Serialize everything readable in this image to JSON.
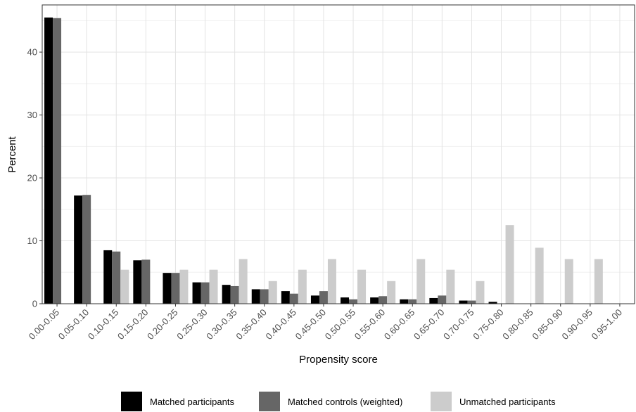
{
  "chart_data": {
    "type": "bar",
    "xlabel": "Propensity score",
    "ylabel": "Percent",
    "ylim": [
      0,
      47.5
    ],
    "yticks": [
      0,
      10,
      20,
      30,
      40
    ],
    "grid": true,
    "legend_position": "bottom",
    "categories": [
      "0.00-0.05",
      "0.05-0.10",
      "0.10-0.15",
      "0.15-0.20",
      "0.20-0.25",
      "0.25-0.30",
      "0.30-0.35",
      "0.35-0.40",
      "0.40-0.45",
      "0.45-0.50",
      "0.50-0.55",
      "0.55-0.60",
      "0.60-0.65",
      "0.65-0.70",
      "0.70-0.75",
      "0.75-0.80",
      "0.80-0.85",
      "0.85-0.90",
      "0.90-0.95",
      "0.95-1.00"
    ],
    "series": [
      {
        "name": "Matched participants",
        "color": "#000000",
        "values": [
          45.5,
          17.2,
          8.5,
          6.9,
          4.9,
          3.4,
          3.0,
          2.3,
          2.0,
          1.3,
          1.0,
          1.0,
          0.7,
          0.9,
          0.5,
          0.3,
          0,
          0,
          0,
          0
        ]
      },
      {
        "name": "Matched controls (weighted)",
        "color": "#666666",
        "values": [
          45.4,
          17.3,
          8.3,
          7.0,
          4.9,
          3.4,
          2.8,
          2.3,
          1.6,
          2.0,
          0.7,
          1.2,
          0.7,
          1.3,
          0.5,
          0,
          0,
          0,
          0,
          0
        ]
      },
      {
        "name": "Unmatched participants",
        "color": "#cccccc",
        "values": [
          0,
          0,
          5.4,
          0,
          5.4,
          5.4,
          7.1,
          3.6,
          5.4,
          7.1,
          5.4,
          3.6,
          7.1,
          5.4,
          3.6,
          12.5,
          8.9,
          7.1,
          7.1,
          0
        ]
      }
    ]
  }
}
